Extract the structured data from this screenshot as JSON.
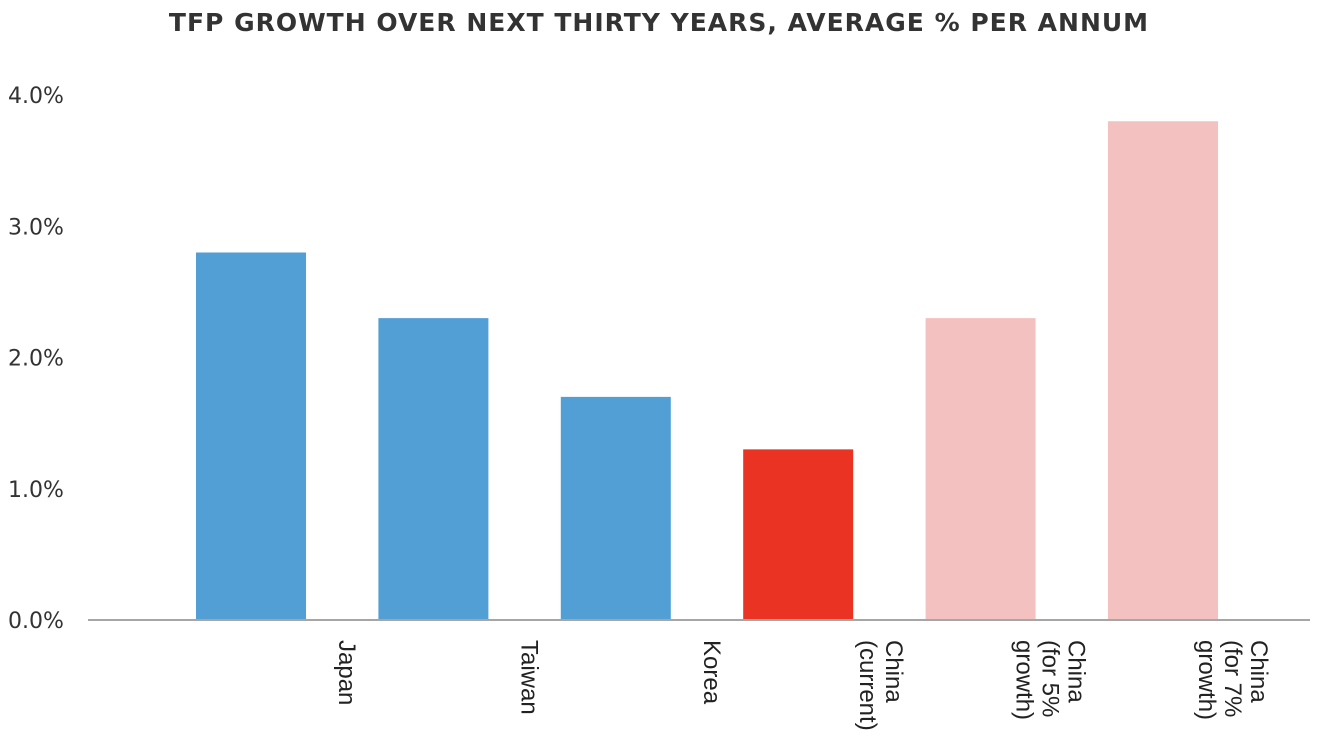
{
  "chart_data": {
    "type": "bar",
    "title": "TFP GROWTH OVER NEXT THIRTY YEARS, AVERAGE % PER ANNUM",
    "xlabel": "",
    "ylabel": "",
    "categories": [
      [
        "Japan"
      ],
      [
        "Taiwan"
      ],
      [
        "Korea"
      ],
      [
        "China",
        "(current)"
      ],
      [
        "China",
        "(for 5%",
        "growth)"
      ],
      [
        "China",
        "(for 7%",
        "growth)"
      ]
    ],
    "values": [
      2.8,
      2.3,
      1.7,
      1.3,
      2.3,
      3.8
    ],
    "colors": [
      "#529fd6",
      "#529fd6",
      "#529fd6",
      "#ea3323",
      "#f4c1c1",
      "#f4c1c1"
    ],
    "ylim": [
      0,
      4
    ],
    "yticks": [
      "0.0%",
      "1.0%",
      "2.0%",
      "3.0%",
      "4.0%"
    ],
    "grid": false,
    "axis_color": "#a6a6a6"
  }
}
